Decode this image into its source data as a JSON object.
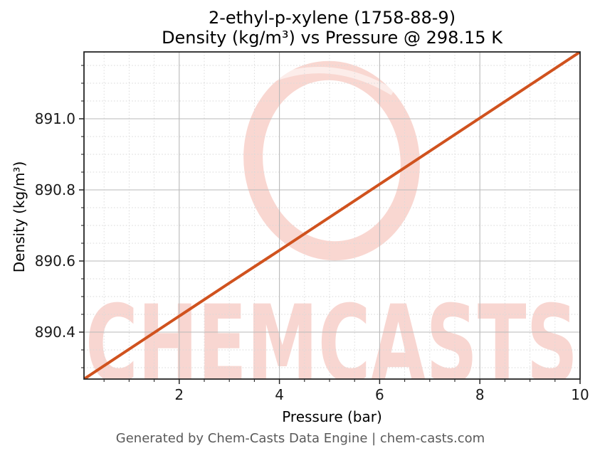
{
  "title": {
    "line1": "2-ethyl-p-xylene (1758-88-9)",
    "line2": "Density (kg/m³) vs Pressure @ 298.15 K"
  },
  "footer": {
    "text": "Generated by Chem-Casts Data Engine | chem-casts.com"
  },
  "watermark": {
    "text": "CHEMCASTS",
    "logo": "brush-ring-logo",
    "color": "#f7cdc6"
  },
  "chart_data": {
    "type": "line",
    "title_lines": [
      "2-ethyl-p-xylene (1758-88-9)",
      "Density (kg/m³) vs Pressure @ 298.15 K"
    ],
    "xlabel": "Pressure (bar)",
    "ylabel": "Density (kg/m³)",
    "temperature_annotation": "298.15 K",
    "compound": "2-ethyl-p-xylene",
    "cas_number": "1758-88-9",
    "x": [
      0.1,
      1,
      2,
      3,
      4,
      5,
      6,
      7,
      8,
      9,
      10
    ],
    "y": [
      890.268,
      890.352,
      890.445,
      890.538,
      890.63,
      890.723,
      890.816,
      890.909,
      891.002,
      891.095,
      891.188
    ],
    "xlim": [
      0.1,
      10
    ],
    "ylim": [
      890.268,
      891.188
    ],
    "xticks": [
      2,
      4,
      6,
      8,
      10
    ],
    "xtick_labels": [
      "2",
      "4",
      "6",
      "8",
      "10"
    ],
    "yticks": [
      890.4,
      890.6,
      890.8,
      891.0
    ],
    "ytick_labels": [
      "890.4",
      "890.6",
      "890.8",
      "891.0"
    ],
    "x_minor_step": 0.5,
    "y_minor_step": 0.05,
    "grid": true,
    "grid_which": "both",
    "legend": false,
    "line_color": "#d0521e",
    "line_width": 4
  },
  "colors": {
    "spine": "#262626",
    "major_grid": "#b9b9b9",
    "minor_grid": "#d9d9d9",
    "tick_label": "#1a1a1a",
    "footer_text": "#595959"
  }
}
